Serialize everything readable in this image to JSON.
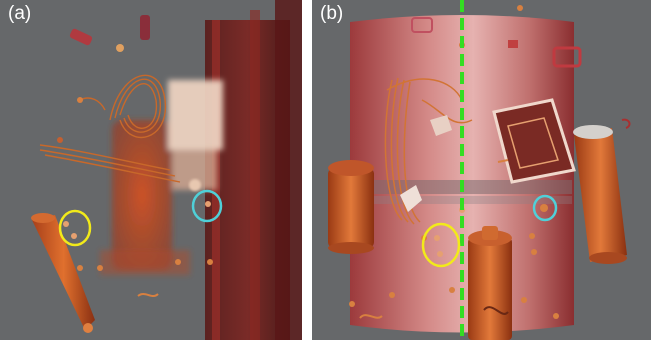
{
  "panels": [
    {
      "label": "(a)"
    },
    {
      "label": "(b)"
    }
  ],
  "colors": {
    "background": "#66686a",
    "copper": "#c45a25",
    "dark_red": "#7a1a14",
    "highlight_yellow": "#f2ea1a",
    "highlight_cyan": "#4fd0d8",
    "divider_green": "#33dd22"
  }
}
